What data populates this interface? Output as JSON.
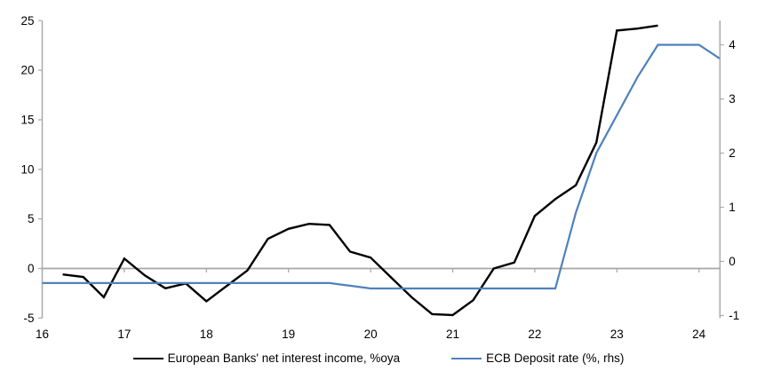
{
  "chart_data": {
    "type": "line",
    "title": "",
    "x_axis": {
      "ticks": [
        16,
        17,
        18,
        19,
        20,
        21,
        22,
        23,
        24
      ],
      "range": [
        16,
        24.25
      ]
    },
    "left_axis": {
      "ticks": [
        25,
        20,
        15,
        10,
        5,
        0,
        -5
      ],
      "range": [
        -5,
        25
      ],
      "label": ""
    },
    "right_axis": {
      "ticks": [
        4,
        3,
        2,
        1,
        0,
        -1
      ],
      "range": [
        -1,
        4.4
      ],
      "label": ""
    },
    "grid": "zero-line-only",
    "legend_position": "bottom",
    "series": [
      {
        "name": "European Banks' net interest income, %oya",
        "axis": "left",
        "color": "#000000",
        "points": [
          [
            16.25,
            -0.6
          ],
          [
            16.5,
            -0.85
          ],
          [
            16.75,
            -2.9
          ],
          [
            17.0,
            1.0
          ],
          [
            17.25,
            -0.7
          ],
          [
            17.5,
            -2.0
          ],
          [
            17.75,
            -1.5
          ],
          [
            18.0,
            -3.3
          ],
          [
            18.25,
            -1.75
          ],
          [
            18.5,
            -0.2
          ],
          [
            18.75,
            3.0
          ],
          [
            19.0,
            4.0
          ],
          [
            19.25,
            4.5
          ],
          [
            19.5,
            4.4
          ],
          [
            19.75,
            1.7
          ],
          [
            20.0,
            1.1
          ],
          [
            20.25,
            -0.9
          ],
          [
            20.5,
            -2.9
          ],
          [
            20.75,
            -4.6
          ],
          [
            21.0,
            -4.7
          ],
          [
            21.25,
            -3.2
          ],
          [
            21.5,
            0.0
          ],
          [
            21.75,
            0.6
          ],
          [
            22.0,
            5.3
          ],
          [
            22.25,
            7.0
          ],
          [
            22.5,
            8.4
          ],
          [
            22.75,
            12.7
          ],
          [
            23.0,
            24.0
          ],
          [
            23.25,
            24.2
          ],
          [
            23.5,
            24.5
          ]
        ]
      },
      {
        "name": "ECB Deposit rate (%, rhs)",
        "axis": "right",
        "color": "#4F81BD",
        "points": [
          [
            16.0,
            -0.4
          ],
          [
            19.5,
            -0.4
          ],
          [
            19.75,
            -0.45
          ],
          [
            20.0,
            -0.5
          ],
          [
            22.25,
            -0.5
          ],
          [
            22.5,
            0.9
          ],
          [
            22.75,
            2.0
          ],
          [
            23.0,
            2.7
          ],
          [
            23.25,
            3.4
          ],
          [
            23.5,
            4.0
          ],
          [
            23.75,
            4.0
          ],
          [
            24.0,
            4.0
          ],
          [
            24.25,
            3.75
          ]
        ]
      }
    ]
  },
  "legend": {
    "items": [
      {
        "label": "European Banks' net interest income, %oya",
        "color": "#000000"
      },
      {
        "label": "ECB Deposit rate (%, rhs)",
        "color": "#4F81BD"
      }
    ]
  },
  "colors": {
    "axis": "#a9a9a9",
    "zero_line": "#a6a6a6",
    "text": "#000000",
    "background": "#ffffff",
    "series_black": "#000000",
    "series_blue": "#4F81BD"
  }
}
